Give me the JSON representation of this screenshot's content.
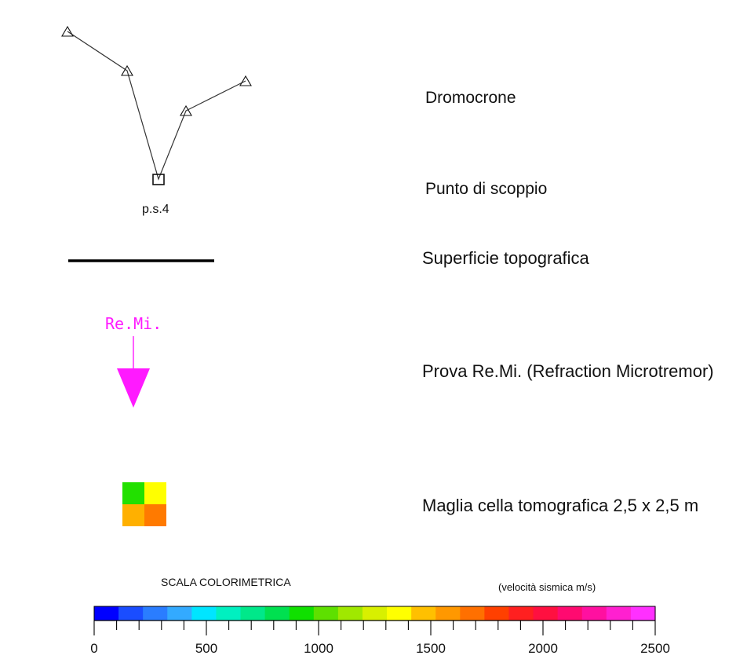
{
  "legend": {
    "travel_time_curves": {
      "label": "Dromocrone"
    },
    "shot_point": {
      "label": "Punto di scoppio",
      "marker_label": "p.s.4"
    },
    "topographic_surface": {
      "label": "Superficie topografica"
    },
    "remi_test": {
      "label": "Prova Re.Mi. (Refraction Microtremor)",
      "marker_label": "Re.Mi.",
      "color": "#ff1aff"
    },
    "tomographic_cell": {
      "label": "Maglia cella tomografica 2,5 x 2,5 m",
      "cell_colors": [
        "#22e000",
        "#ffff00",
        "#ffb000",
        "#ff7a00"
      ]
    }
  },
  "color_scale": {
    "title": "SCALA  COLORIMETRICA",
    "unit_label": "(velocità sismica m/s)",
    "min": 0,
    "max": 2500,
    "minor_step": 100,
    "tick_labels": [
      "0",
      "500",
      "1000",
      "1500",
      "2000",
      "2500"
    ],
    "colors": [
      "#0000ff",
      "#1a4dff",
      "#2a7dff",
      "#33aaff",
      "#00e5ff",
      "#00f0c0",
      "#00e88a",
      "#00e050",
      "#10e000",
      "#5ee000",
      "#a0e800",
      "#d8f000",
      "#ffff00",
      "#ffc000",
      "#ff9800",
      "#ff7000",
      "#ff4000",
      "#ff2020",
      "#ff1040",
      "#ff0a70",
      "#ff10a0",
      "#ff20d0",
      "#ff30ff"
    ]
  }
}
